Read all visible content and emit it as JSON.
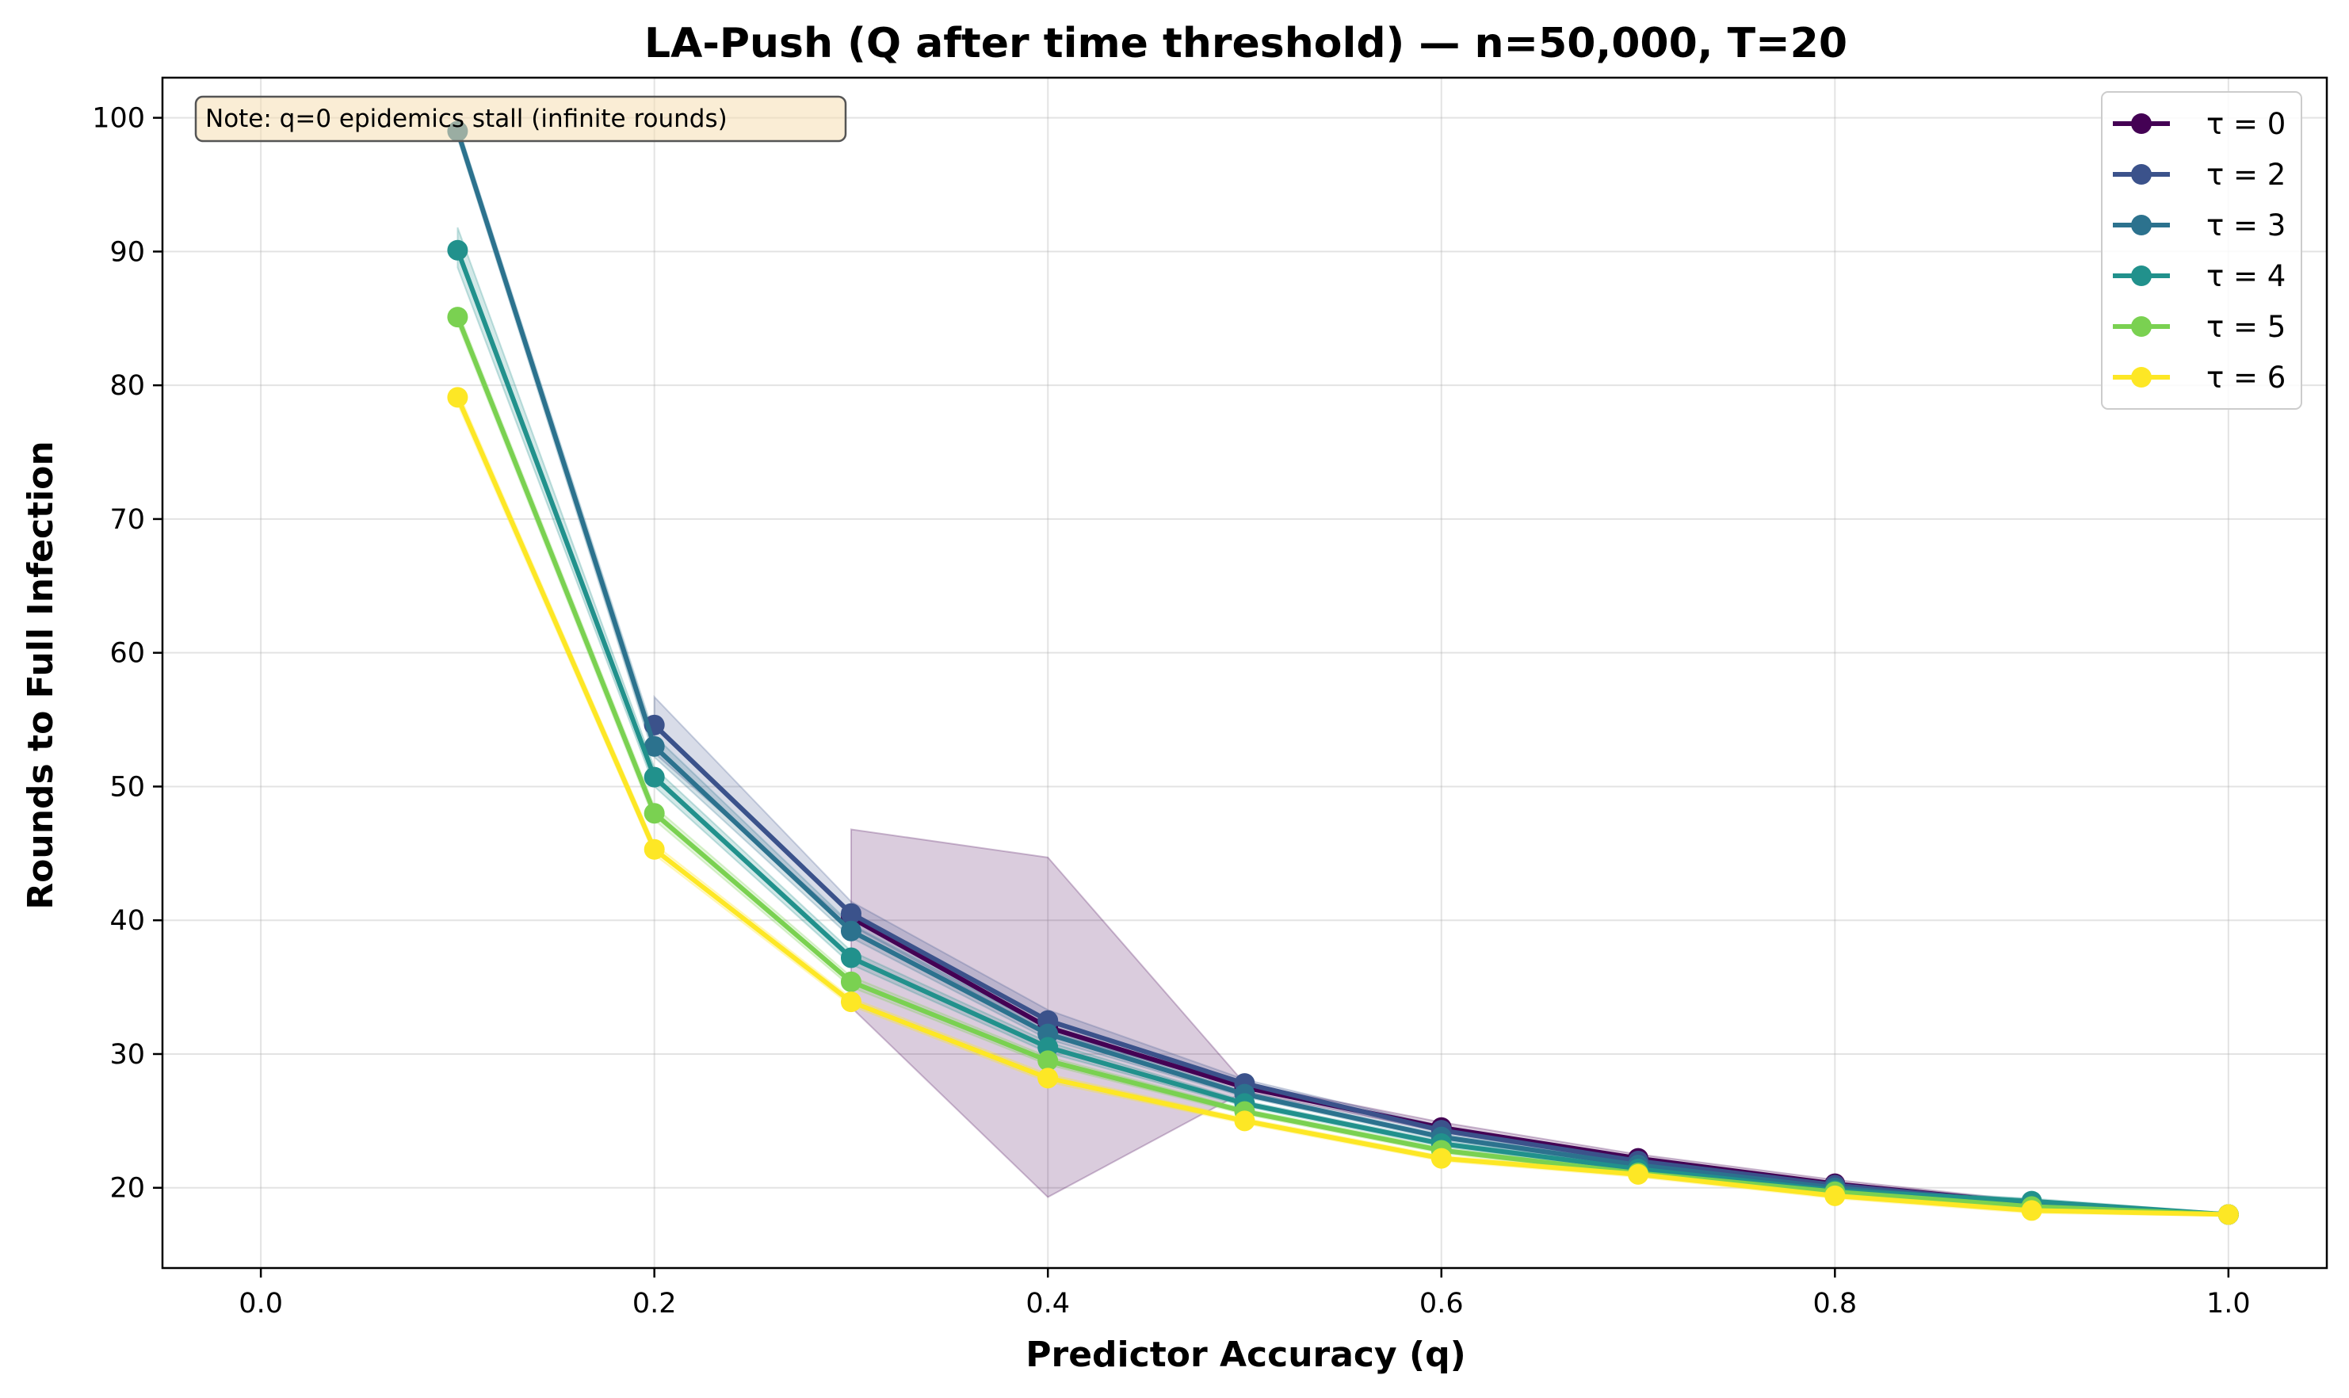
{
  "chart_data": {
    "type": "line",
    "title": "LA-Push (Q after time threshold) — n=50,000, T=20",
    "xlabel": "Predictor Accuracy (q)",
    "ylabel": "Rounds to Full Infection",
    "xlim": [
      -0.05,
      1.05
    ],
    "ylim": [
      14,
      103
    ],
    "xticks": [
      0.0,
      0.2,
      0.4,
      0.6,
      0.8,
      1.0
    ],
    "xtick_labels": [
      "0.0",
      "0.2",
      "0.4",
      "0.6",
      "0.8",
      "1.0"
    ],
    "yticks": [
      20,
      30,
      40,
      50,
      60,
      70,
      80,
      90,
      100
    ],
    "ytick_labels": [
      "20",
      "30",
      "40",
      "50",
      "60",
      "70",
      "80",
      "90",
      "100"
    ],
    "grid": true,
    "legend_position": "top-right",
    "annotation": "Note: q=0 epidemics stall (infinite rounds)",
    "series": [
      {
        "name": "τ = 0",
        "color": "#440154",
        "x": [
          0.3,
          0.4,
          0.5,
          0.6,
          0.7,
          0.8,
          0.9,
          1.0
        ],
        "y": [
          40.2,
          32.0,
          27.5,
          24.5,
          22.2,
          20.3,
          18.8,
          18.0
        ],
        "band_lower": [
          33.5,
          19.3,
          27.2,
          24.2,
          22.0,
          20.1,
          18.6,
          17.9
        ],
        "band_upper": [
          46.8,
          44.7,
          27.8,
          24.9,
          22.5,
          20.6,
          19.0,
          18.1
        ]
      },
      {
        "name": "τ = 2",
        "color": "#3b528b",
        "x": [
          0.2,
          0.3,
          0.4,
          0.5,
          0.6,
          0.7,
          0.8,
          0.9,
          1.0
        ],
        "y": [
          54.6,
          40.5,
          32.5,
          27.8,
          24.3,
          22.0,
          20.2,
          18.8,
          18.0
        ],
        "band_lower": [
          52.5,
          39.6,
          31.6,
          27.5,
          24.1,
          21.8,
          20.0,
          18.6,
          17.9
        ],
        "band_upper": [
          56.7,
          41.4,
          33.3,
          28.1,
          24.6,
          22.3,
          20.4,
          19.0,
          18.1
        ]
      },
      {
        "name": "τ = 3",
        "color": "#2c728e",
        "x": [
          0.1,
          0.2,
          0.3,
          0.4,
          0.5,
          0.6,
          0.7,
          0.8,
          0.9,
          1.0
        ],
        "y": [
          99.0,
          53.0,
          39.2,
          31.5,
          27.0,
          23.8,
          21.7,
          20.0,
          18.8,
          18.0
        ],
        "band_lower": [
          98.5,
          52.2,
          38.7,
          31.1,
          26.8,
          23.6,
          21.5,
          19.8,
          18.6,
          17.9
        ],
        "band_upper": [
          99.5,
          53.8,
          39.7,
          31.9,
          27.2,
          24.0,
          21.9,
          20.2,
          19.0,
          18.1
        ]
      },
      {
        "name": "τ = 4",
        "color": "#21918c",
        "x": [
          0.1,
          0.2,
          0.3,
          0.4,
          0.5,
          0.6,
          0.7,
          0.8,
          0.9,
          1.0
        ],
        "y": [
          90.1,
          50.7,
          37.2,
          30.5,
          26.3,
          23.3,
          21.4,
          19.8,
          19.0,
          18.0
        ],
        "band_lower": [
          88.8,
          50.0,
          36.7,
          30.1,
          26.1,
          23.1,
          21.2,
          19.6,
          18.8,
          17.9
        ],
        "band_upper": [
          91.8,
          51.4,
          37.7,
          30.9,
          26.5,
          23.5,
          21.6,
          20.0,
          19.2,
          18.1
        ]
      },
      {
        "name": "τ = 5",
        "color": "#7ad151",
        "x": [
          0.1,
          0.2,
          0.3,
          0.4,
          0.5,
          0.6,
          0.7,
          0.8,
          0.9,
          1.0
        ],
        "y": [
          85.1,
          48.0,
          35.4,
          29.5,
          25.7,
          22.8,
          21.1,
          19.7,
          18.6,
          18.0
        ],
        "band_lower": [
          84.6,
          47.5,
          35.0,
          29.2,
          25.5,
          22.6,
          20.9,
          19.5,
          18.4,
          17.9
        ],
        "band_upper": [
          85.6,
          48.5,
          35.8,
          29.8,
          25.9,
          23.0,
          21.3,
          19.9,
          18.8,
          18.1
        ]
      },
      {
        "name": "τ = 6",
        "color": "#fde725",
        "x": [
          0.1,
          0.2,
          0.3,
          0.4,
          0.5,
          0.6,
          0.7,
          0.8,
          0.9,
          1.0
        ],
        "y": [
          79.1,
          45.3,
          33.9,
          28.2,
          25.0,
          22.2,
          21.0,
          19.4,
          18.3,
          18.0
        ],
        "band_lower": [
          78.6,
          44.9,
          33.6,
          27.9,
          24.8,
          22.0,
          20.8,
          19.2,
          18.1,
          17.9
        ],
        "band_upper": [
          79.6,
          45.7,
          34.2,
          28.5,
          25.2,
          22.4,
          21.2,
          19.6,
          18.5,
          18.1
        ]
      }
    ]
  }
}
